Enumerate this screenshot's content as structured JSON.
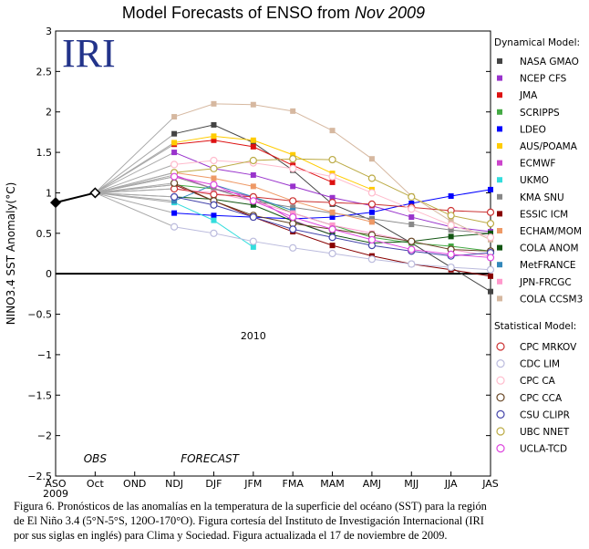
{
  "chart_data": {
    "type": "line",
    "title": {
      "main": "Model Forecasts of ENSO from ",
      "italic": "Nov 2009"
    },
    "logo": "IRI",
    "ylabel": "NINO3.4 SST Anomaly(°C)",
    "ylim": [
      -2.5,
      3
    ],
    "yticks": [
      "3",
      "2.5",
      "2",
      "1.5",
      "1",
      "0.5",
      "0",
      "−0.5",
      "−1",
      "−1.5",
      "−2",
      "−2.5"
    ],
    "ytick_values": [
      3,
      2.5,
      2,
      1.5,
      1,
      0.5,
      0,
      -0.5,
      -1,
      -1.5,
      -2,
      -2.5
    ],
    "categories": [
      "ASO",
      "Oct",
      "OND",
      "NDJ",
      "DJF",
      "JFM",
      "FMA",
      "MAM",
      "AMJ",
      "MJJ",
      "JJA",
      "JAS"
    ],
    "year_labels": [
      {
        "label": "2009",
        "index": 0
      },
      {
        "label": "2010",
        "index": 5
      }
    ],
    "period_labels": [
      {
        "label": "OBS",
        "index": 1
      },
      {
        "label": "FORECAST",
        "index": 3.9
      }
    ],
    "observed": [
      0.88,
      1.0
    ],
    "legend_dynamical_title": "Dynamical Model:",
    "legend_statistical_title": "Statistical Model:",
    "series": [
      {
        "name": "NASA GMAO",
        "kind": "dynamical",
        "color": "#444444",
        "values": [
          null,
          1.0,
          null,
          1.73,
          1.84,
          1.62,
          1.28,
          0.86,
          0.66,
          0.38,
          0.08,
          -0.22
        ]
      },
      {
        "name": "NCEP CFS",
        "kind": "dynamical",
        "color": "#9933cc",
        "values": [
          null,
          1.0,
          null,
          1.5,
          1.3,
          1.22,
          1.08,
          0.94,
          0.84,
          0.7,
          0.58,
          0.52
        ]
      },
      {
        "name": "JMA",
        "kind": "dynamical",
        "color": "#dd1111",
        "values": [
          null,
          1.0,
          null,
          1.6,
          1.65,
          1.57,
          1.34,
          1.13,
          null,
          null,
          null,
          null
        ]
      },
      {
        "name": "SCRIPPS",
        "kind": "dynamical",
        "color": "#44aa44",
        "values": [
          null,
          1.0,
          null,
          1.1,
          1.05,
          0.95,
          0.75,
          0.6,
          0.45,
          0.38,
          0.34,
          0.28
        ]
      },
      {
        "name": "LDEO",
        "kind": "dynamical",
        "color": "#0000ff",
        "values": [
          null,
          1.0,
          null,
          0.75,
          0.72,
          0.7,
          0.68,
          0.7,
          0.76,
          0.87,
          0.96,
          1.04
        ]
      },
      {
        "name": "AUS/POAMA",
        "kind": "dynamical",
        "color": "#ffcc00",
        "values": [
          null,
          1.0,
          null,
          1.62,
          1.7,
          1.65,
          1.47,
          1.24,
          1.04,
          null,
          null,
          null
        ]
      },
      {
        "name": "ECMWF",
        "kind": "dynamical",
        "color": "#cc44cc",
        "values": [
          null,
          1.0,
          null,
          1.22,
          1.05,
          0.95,
          0.66,
          0.48,
          null,
          null,
          null,
          null
        ]
      },
      {
        "name": "UKMO",
        "kind": "dynamical",
        "color": "#33dddd",
        "values": [
          null,
          1.0,
          null,
          0.88,
          0.66,
          0.33,
          null,
          null,
          null,
          null,
          null,
          null
        ]
      },
      {
        "name": "KMA SNU",
        "kind": "dynamical",
        "color": "#888888",
        "values": [
          null,
          1.0,
          null,
          1.2,
          1.05,
          0.9,
          0.82,
          0.75,
          0.68,
          0.61,
          0.54,
          0.5
        ]
      },
      {
        "name": "ESSIC ICM",
        "kind": "dynamical",
        "color": "#880000",
        "values": [
          null,
          1.0,
          null,
          1.1,
          0.9,
          0.7,
          0.52,
          0.35,
          0.22,
          0.12,
          0.05,
          -0.03
        ]
      },
      {
        "name": "ECHAM/MOM",
        "kind": "dynamical",
        "color": "#ee9966",
        "values": [
          null,
          1.0,
          null,
          1.25,
          1.18,
          1.08,
          0.9,
          0.76,
          0.64,
          null,
          null,
          null
        ]
      },
      {
        "name": "COLA ANOM",
        "kind": "dynamical",
        "color": "#115511",
        "values": [
          null,
          1.0,
          null,
          0.95,
          0.92,
          0.85,
          0.65,
          0.48,
          0.38,
          0.4,
          0.46,
          0.5
        ]
      },
      {
        "name": "MetFRANCE",
        "kind": "dynamical",
        "color": "#3388bb",
        "values": [
          null,
          1.0,
          null,
          0.9,
          1.1,
          0.95,
          0.78,
          null,
          null,
          null,
          null,
          null
        ]
      },
      {
        "name": "JPN-FRCGC",
        "kind": "dynamical",
        "color": "#ff99cc",
        "values": [
          null,
          1.0,
          null,
          1.05,
          1.0,
          0.9,
          0.75,
          0.6,
          0.5,
          0.4,
          0.3,
          0.22
        ]
      },
      {
        "name": "COLA CCSM3",
        "kind": "dynamical",
        "color": "#d6b8a0",
        "values": [
          null,
          1.0,
          null,
          1.94,
          2.1,
          2.09,
          2.01,
          1.77,
          1.42,
          0.96,
          0.65,
          0.42
        ]
      },
      {
        "name": "CPC MRKOV",
        "kind": "statistical",
        "color": "#cc3333",
        "values": [
          null,
          1.0,
          null,
          1.05,
          0.98,
          0.95,
          0.9,
          0.88,
          0.86,
          0.82,
          0.78,
          0.76
        ]
      },
      {
        "name": "CDC LIM",
        "kind": "statistical",
        "color": "#bbbbdd",
        "values": [
          null,
          1.0,
          null,
          0.58,
          0.5,
          0.4,
          0.32,
          0.25,
          0.18,
          0.12,
          0.08,
          0.05
        ]
      },
      {
        "name": "CPC CA",
        "kind": "statistical",
        "color": "#ffbbcc",
        "values": [
          null,
          1.0,
          null,
          1.35,
          1.4,
          1.37,
          1.3,
          1.2,
          1.0,
          0.8,
          0.6,
          0.45
        ]
      },
      {
        "name": "CPC CCA",
        "kind": "statistical",
        "color": "#664422",
        "values": [
          null,
          1.0,
          null,
          1.12,
          0.9,
          0.72,
          0.62,
          0.55,
          0.48,
          0.4,
          0.3,
          0.28
        ]
      },
      {
        "name": "CSU CLIPR",
        "kind": "statistical",
        "color": "#4444aa",
        "values": [
          null,
          1.0,
          null,
          0.95,
          0.85,
          0.7,
          0.55,
          0.45,
          0.35,
          0.28,
          0.22,
          0.26
        ]
      },
      {
        "name": "UBC NNET",
        "kind": "statistical",
        "color": "#bbaa44",
        "values": [
          null,
          1.0,
          null,
          1.25,
          1.3,
          1.4,
          1.42,
          1.41,
          1.18,
          0.95,
          0.72,
          0.62
        ]
      },
      {
        "name": "UCLA-TCD",
        "kind": "statistical",
        "color": "#dd44dd",
        "values": [
          null,
          1.0,
          null,
          1.2,
          1.1,
          0.9,
          0.7,
          0.55,
          0.42,
          0.3,
          0.24,
          0.2
        ]
      }
    ]
  },
  "caption": [
    "Figura 6.  Pronósticos de las anomalías en la temperatura de la superficie del  océano (SST) para la región",
    "de El Niño 3.4 (5°N-5°S, 120O-170°O). Figura cortesía del Instituto de Investigación Internacional (IRI",
    "por sus siglas en inglés) para Clima y Sociedad. Figura actualizada el 17 de noviembre de 2009."
  ]
}
